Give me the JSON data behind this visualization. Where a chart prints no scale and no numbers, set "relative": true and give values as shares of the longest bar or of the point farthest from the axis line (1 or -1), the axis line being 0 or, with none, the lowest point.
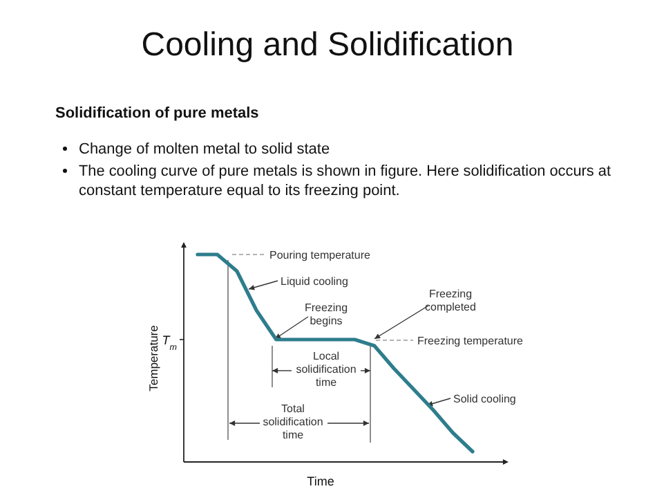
{
  "chart_data": {
    "type": "line",
    "relative": true,
    "title": "Cooling and Solidification",
    "subtitle": "Solidification of pure metals",
    "xlabel": "Time",
    "ylabel": "Temperature",
    "categories": [
      null,
      null,
      null,
      null,
      null,
      null,
      null,
      null,
      null,
      null,
      null,
      null,
      null,
      null,
      null
    ],
    "values": [
      1,
      1,
      0.92,
      0.73,
      0.59,
      0.59,
      0.59,
      0.59,
      0.59,
      0.56,
      0.45,
      0.35,
      0.25,
      0.14,
      0.05
    ],
    "color": "#2e7d8c",
    "annotations": [
      "Change of molten metal to solid state",
      "The cooling curve of pure metals is shown in figure. Here solidification occurs at constant temperature equal to its freezing point.",
      "T$_{m}$",
      "Pouring temperature",
      "Liquid cooling",
      "Freezing begins",
      "Freezing completed",
      "Freezing temperature",
      "Local solidification time",
      "Total solidification time",
      "Solid cooling"
    ]
  }
}
